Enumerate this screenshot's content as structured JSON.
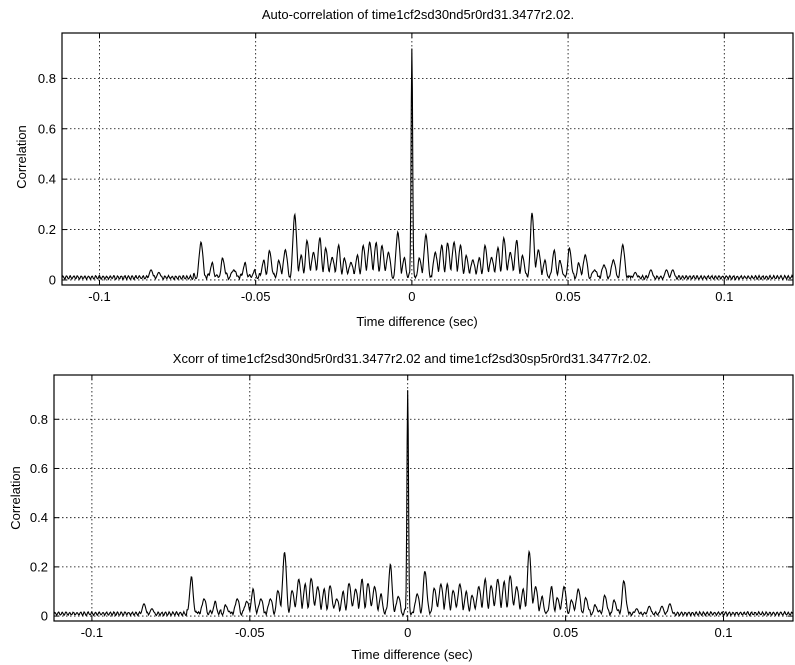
{
  "chart_data": [
    {
      "type": "line",
      "title": "Auto-correlation of time1cf2sd30nd5r0rd31.3477r2.02.",
      "xlabel": "Time difference (sec)",
      "ylabel": "Correlation",
      "xlim": [
        -0.112,
        0.122
      ],
      "ylim": [
        -0.02,
        0.98
      ],
      "xticks": [
        -0.1,
        -0.05,
        0,
        0.05,
        0.1
      ],
      "xtick_labels": [
        "-0.1",
        "-0.05",
        "0",
        "0.05",
        "0.1"
      ],
      "yticks": [
        0,
        0.2,
        0.4,
        0.6,
        0.8
      ],
      "ytick_labels": [
        "0",
        "0.2",
        "0.4",
        "0.6",
        "0.8"
      ],
      "grid": true,
      "line_color": "#000000",
      "peaks": [
        [
          -0.0835,
          0.04
        ],
        [
          -0.081,
          0.03
        ],
        [
          -0.0675,
          0.15
        ],
        [
          -0.064,
          0.06
        ],
        [
          -0.0605,
          0.08
        ],
        [
          -0.057,
          0.04
        ],
        [
          -0.0535,
          0.06
        ],
        [
          -0.0505,
          0.03
        ],
        [
          -0.0475,
          0.07
        ],
        [
          -0.0455,
          0.11
        ],
        [
          -0.0425,
          0.07
        ],
        [
          -0.0405,
          0.12
        ],
        [
          -0.0375,
          0.26
        ],
        [
          -0.0355,
          0.09
        ],
        [
          -0.0335,
          0.15
        ],
        [
          -0.0315,
          0.11
        ],
        [
          -0.0295,
          0.16
        ],
        [
          -0.0275,
          0.12
        ],
        [
          -0.0255,
          0.09
        ],
        [
          -0.0235,
          0.13
        ],
        [
          -0.0215,
          0.08
        ],
        [
          -0.0195,
          0.07
        ],
        [
          -0.0175,
          0.09
        ],
        [
          -0.0155,
          0.13
        ],
        [
          -0.0135,
          0.15
        ],
        [
          -0.0115,
          0.14
        ],
        [
          -0.0095,
          0.13
        ],
        [
          -0.0075,
          0.11
        ],
        [
          -0.0045,
          0.19
        ],
        [
          -0.0025,
          0.08
        ],
        [
          0.0,
          0.92
        ],
        [
          0.0025,
          0.08
        ],
        [
          0.0045,
          0.18
        ],
        [
          0.0075,
          0.11
        ],
        [
          0.0095,
          0.13
        ],
        [
          0.0115,
          0.14
        ],
        [
          0.0135,
          0.15
        ],
        [
          0.0155,
          0.13
        ],
        [
          0.0175,
          0.09
        ],
        [
          0.0195,
          0.08
        ],
        [
          0.0215,
          0.08
        ],
        [
          0.0235,
          0.13
        ],
        [
          0.0255,
          0.09
        ],
        [
          0.0275,
          0.12
        ],
        [
          0.0295,
          0.16
        ],
        [
          0.0315,
          0.11
        ],
        [
          0.0335,
          0.15
        ],
        [
          0.0355,
          0.09
        ],
        [
          0.0385,
          0.26
        ],
        [
          0.0405,
          0.12
        ],
        [
          0.0425,
          0.07
        ],
        [
          0.0455,
          0.11
        ],
        [
          0.0475,
          0.07
        ],
        [
          0.0505,
          0.12
        ],
        [
          0.0535,
          0.06
        ],
        [
          0.0555,
          0.1
        ],
        [
          0.0585,
          0.04
        ],
        [
          0.0615,
          0.06
        ],
        [
          0.0645,
          0.08
        ],
        [
          0.0675,
          0.14
        ],
        [
          0.0715,
          0.03
        ],
        [
          0.0765,
          0.04
        ],
        [
          0.0815,
          0.04
        ],
        [
          0.0835,
          0.04
        ]
      ],
      "baseline": 0.01
    },
    {
      "type": "line",
      "title": "Xcorr of time1cf2sd30nd5r0rd31.3477r2.02 and time1cf2sd30sp5r0rd31.3477r2.02.",
      "xlabel": "Time difference (sec)",
      "ylabel": "Correlation",
      "xlim": [
        -0.112,
        0.122
      ],
      "ylim": [
        -0.02,
        0.98
      ],
      "xticks": [
        -0.1,
        -0.05,
        0,
        0.05,
        0.1
      ],
      "xtick_labels": [
        "-0.1",
        "-0.05",
        "0",
        "0.05",
        "0.1"
      ],
      "yticks": [
        0,
        0.2,
        0.4,
        0.6,
        0.8
      ],
      "ytick_labels": [
        "0",
        "0.2",
        "0.4",
        "0.6",
        "0.8"
      ],
      "grid": true,
      "line_color": "#000000",
      "peaks": [
        [
          -0.0835,
          0.05
        ],
        [
          -0.081,
          0.03
        ],
        [
          -0.0685,
          0.15
        ],
        [
          -0.0645,
          0.07
        ],
        [
          -0.061,
          0.05
        ],
        [
          -0.0575,
          0.04
        ],
        [
          -0.054,
          0.07
        ],
        [
          -0.051,
          0.06
        ],
        [
          -0.049,
          0.1
        ],
        [
          -0.0465,
          0.07
        ],
        [
          -0.0435,
          0.07
        ],
        [
          -0.041,
          0.1
        ],
        [
          -0.039,
          0.26
        ],
        [
          -0.0365,
          0.1
        ],
        [
          -0.0345,
          0.15
        ],
        [
          -0.0325,
          0.12
        ],
        [
          -0.0305,
          0.15
        ],
        [
          -0.0285,
          0.12
        ],
        [
          -0.0265,
          0.1
        ],
        [
          -0.0245,
          0.12
        ],
        [
          -0.0225,
          0.07
        ],
        [
          -0.0205,
          0.09
        ],
        [
          -0.0185,
          0.13
        ],
        [
          -0.0165,
          0.11
        ],
        [
          -0.0145,
          0.14
        ],
        [
          -0.0125,
          0.13
        ],
        [
          -0.0105,
          0.12
        ],
        [
          -0.0085,
          0.08
        ],
        [
          -0.0055,
          0.2
        ],
        [
          -0.003,
          0.08
        ],
        [
          0.0,
          0.92
        ],
        [
          0.003,
          0.09
        ],
        [
          0.0055,
          0.18
        ],
        [
          0.0085,
          0.11
        ],
        [
          0.0105,
          0.13
        ],
        [
          0.0125,
          0.12
        ],
        [
          0.0145,
          0.1
        ],
        [
          0.0165,
          0.13
        ],
        [
          0.0185,
          0.09
        ],
        [
          0.0205,
          0.08
        ],
        [
          0.0225,
          0.12
        ],
        [
          0.0245,
          0.14
        ],
        [
          0.0265,
          0.12
        ],
        [
          0.0285,
          0.15
        ],
        [
          0.0305,
          0.13
        ],
        [
          0.0325,
          0.16
        ],
        [
          0.0345,
          0.12
        ],
        [
          0.0365,
          0.1
        ],
        [
          0.0385,
          0.26
        ],
        [
          0.0405,
          0.12
        ],
        [
          0.0425,
          0.07
        ],
        [
          0.0455,
          0.11
        ],
        [
          0.0475,
          0.07
        ],
        [
          0.0495,
          0.12
        ],
        [
          0.052,
          0.06
        ],
        [
          0.054,
          0.11
        ],
        [
          0.0565,
          0.07
        ],
        [
          0.0595,
          0.04
        ],
        [
          0.0625,
          0.08
        ],
        [
          0.0655,
          0.06
        ],
        [
          0.0685,
          0.14
        ],
        [
          0.0725,
          0.03
        ],
        [
          0.0765,
          0.04
        ],
        [
          0.0805,
          0.04
        ],
        [
          0.083,
          0.05
        ]
      ],
      "baseline": 0.01
    }
  ]
}
